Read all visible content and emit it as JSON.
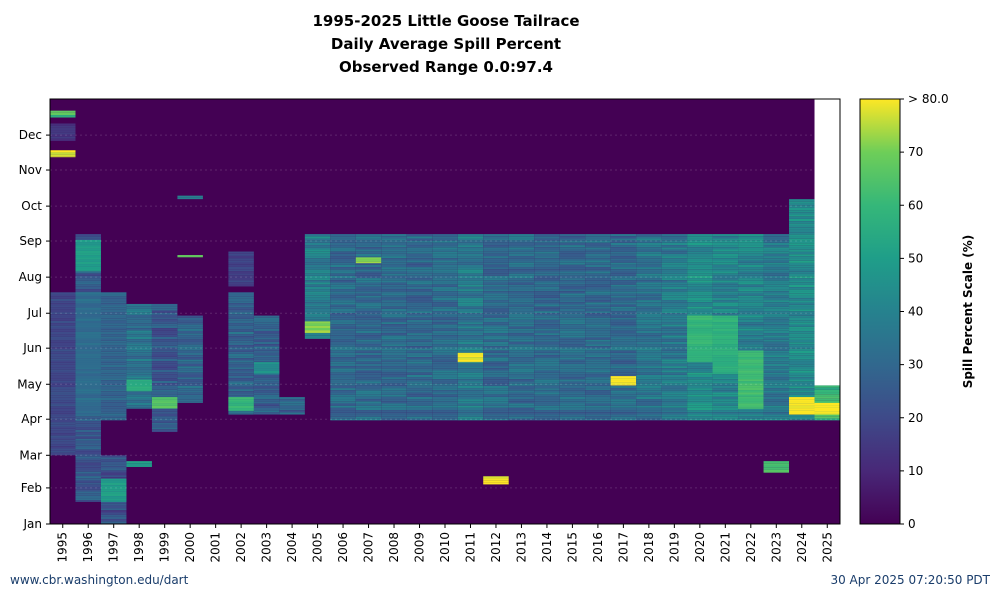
{
  "chart_data": {
    "type": "heatmap",
    "title_lines": [
      "1995-2025 Little Goose Tailrace",
      "Daily Average Spill Percent",
      "Observed Range 0.0:97.4"
    ],
    "x_categories": [
      "1995",
      "1996",
      "1997",
      "1998",
      "1999",
      "2000",
      "2001",
      "2002",
      "2003",
      "2004",
      "2005",
      "2006",
      "2007",
      "2008",
      "2009",
      "2010",
      "2011",
      "2012",
      "2013",
      "2014",
      "2015",
      "2016",
      "2017",
      "2018",
      "2019",
      "2020",
      "2021",
      "2022",
      "2023",
      "2024",
      "2025"
    ],
    "y_ticks": [
      "Jan",
      "Feb",
      "Mar",
      "Apr",
      "May",
      "Jun",
      "Jul",
      "Aug",
      "Sep",
      "Oct",
      "Nov",
      "Dec"
    ],
    "y_range_days": [
      1,
      366
    ],
    "colorbar": {
      "label": "Spill Percent Scale (%)",
      "ticks": [
        0,
        10,
        20,
        30,
        40,
        50,
        60,
        70
      ],
      "top_label": "> 80.0",
      "range": [
        0,
        80
      ],
      "colormap": "viridis"
    },
    "grid": true,
    "series_summary": [
      {
        "year": "1995",
        "spill_season": [
          [
            350,
            356,
            62
          ],
          [
            316,
            322,
            78
          ],
          [
            60,
            200,
            20
          ],
          [
            330,
            345,
            14
          ]
        ]
      },
      {
        "year": "1996",
        "spill_season": [
          [
            20,
            250,
            25
          ],
          [
            218,
            245,
            50
          ],
          [
            95,
            200,
            32
          ]
        ]
      },
      {
        "year": "1997",
        "spill_season": [
          [
            1,
            60,
            22
          ],
          [
            90,
            200,
            30
          ],
          [
            20,
            40,
            50
          ]
        ]
      },
      {
        "year": "1998",
        "spill_season": [
          [
            100,
            190,
            35
          ],
          [
            115,
            125,
            55
          ],
          [
            50,
            55,
            50
          ]
        ]
      },
      {
        "year": "1999",
        "spill_season": [
          [
            80,
            190,
            25
          ],
          [
            100,
            110,
            65
          ]
        ]
      },
      {
        "year": "2000",
        "spill_season": [
          [
            105,
            180,
            30
          ],
          [
            280,
            283,
            40
          ],
          [
            230,
            232,
            70
          ]
        ]
      },
      {
        "year": "2001",
        "spill_season": []
      },
      {
        "year": "2002",
        "spill_season": [
          [
            95,
            200,
            30
          ],
          [
            98,
            110,
            60
          ],
          [
            205,
            235,
            18
          ]
        ]
      },
      {
        "year": "2003",
        "spill_season": [
          [
            95,
            180,
            28
          ],
          [
            130,
            140,
            45
          ]
        ]
      },
      {
        "year": "2004",
        "spill_season": [
          [
            95,
            110,
            28
          ]
        ]
      },
      {
        "year": "2005",
        "spill_season": [
          [
            160,
            250,
            40
          ],
          [
            165,
            175,
            72
          ]
        ]
      },
      {
        "year": "2006",
        "spill_season": [
          [
            90,
            250,
            32
          ]
        ]
      },
      {
        "year": "2007",
        "spill_season": [
          [
            90,
            250,
            32
          ],
          [
            225,
            230,
            72
          ]
        ]
      },
      {
        "year": "2008",
        "spill_season": [
          [
            90,
            250,
            32
          ]
        ]
      },
      {
        "year": "2009",
        "spill_season": [
          [
            90,
            250,
            32
          ]
        ]
      },
      {
        "year": "2010",
        "spill_season": [
          [
            90,
            250,
            32
          ]
        ]
      },
      {
        "year": "2011",
        "spill_season": [
          [
            90,
            250,
            38
          ],
          [
            140,
            148,
            80
          ]
        ]
      },
      {
        "year": "2012",
        "spill_season": [
          [
            90,
            250,
            32
          ],
          [
            35,
            42,
            80
          ]
        ]
      },
      {
        "year": "2013",
        "spill_season": [
          [
            90,
            250,
            32
          ]
        ]
      },
      {
        "year": "2014",
        "spill_season": [
          [
            90,
            250,
            32
          ]
        ]
      },
      {
        "year": "2015",
        "spill_season": [
          [
            90,
            250,
            32
          ]
        ]
      },
      {
        "year": "2016",
        "spill_season": [
          [
            90,
            250,
            32
          ]
        ]
      },
      {
        "year": "2017",
        "spill_season": [
          [
            90,
            250,
            32
          ],
          [
            120,
            128,
            80
          ]
        ]
      },
      {
        "year": "2018",
        "spill_season": [
          [
            90,
            250,
            35
          ]
        ]
      },
      {
        "year": "2019",
        "spill_season": [
          [
            90,
            250,
            38
          ]
        ]
      },
      {
        "year": "2020",
        "spill_season": [
          [
            90,
            250,
            45
          ],
          [
            140,
            180,
            60
          ]
        ]
      },
      {
        "year": "2021",
        "spill_season": [
          [
            90,
            250,
            42
          ],
          [
            130,
            180,
            58
          ]
        ]
      },
      {
        "year": "2022",
        "spill_season": [
          [
            90,
            250,
            42
          ],
          [
            100,
            150,
            62
          ]
        ]
      },
      {
        "year": "2023",
        "spill_season": [
          [
            90,
            250,
            38
          ],
          [
            45,
            55,
            65
          ]
        ]
      },
      {
        "year": "2024",
        "spill_season": [
          [
            90,
            280,
            45
          ],
          [
            95,
            110,
            80
          ]
        ]
      },
      {
        "year": "2025",
        "spill_season": [
          [
            90,
            120,
            60
          ],
          [
            95,
            105,
            80
          ]
        ]
      }
    ]
  },
  "footer": {
    "left": "www.cbr.washington.edu/dart",
    "right": "30 Apr 2025 07:20:50 PDT"
  }
}
